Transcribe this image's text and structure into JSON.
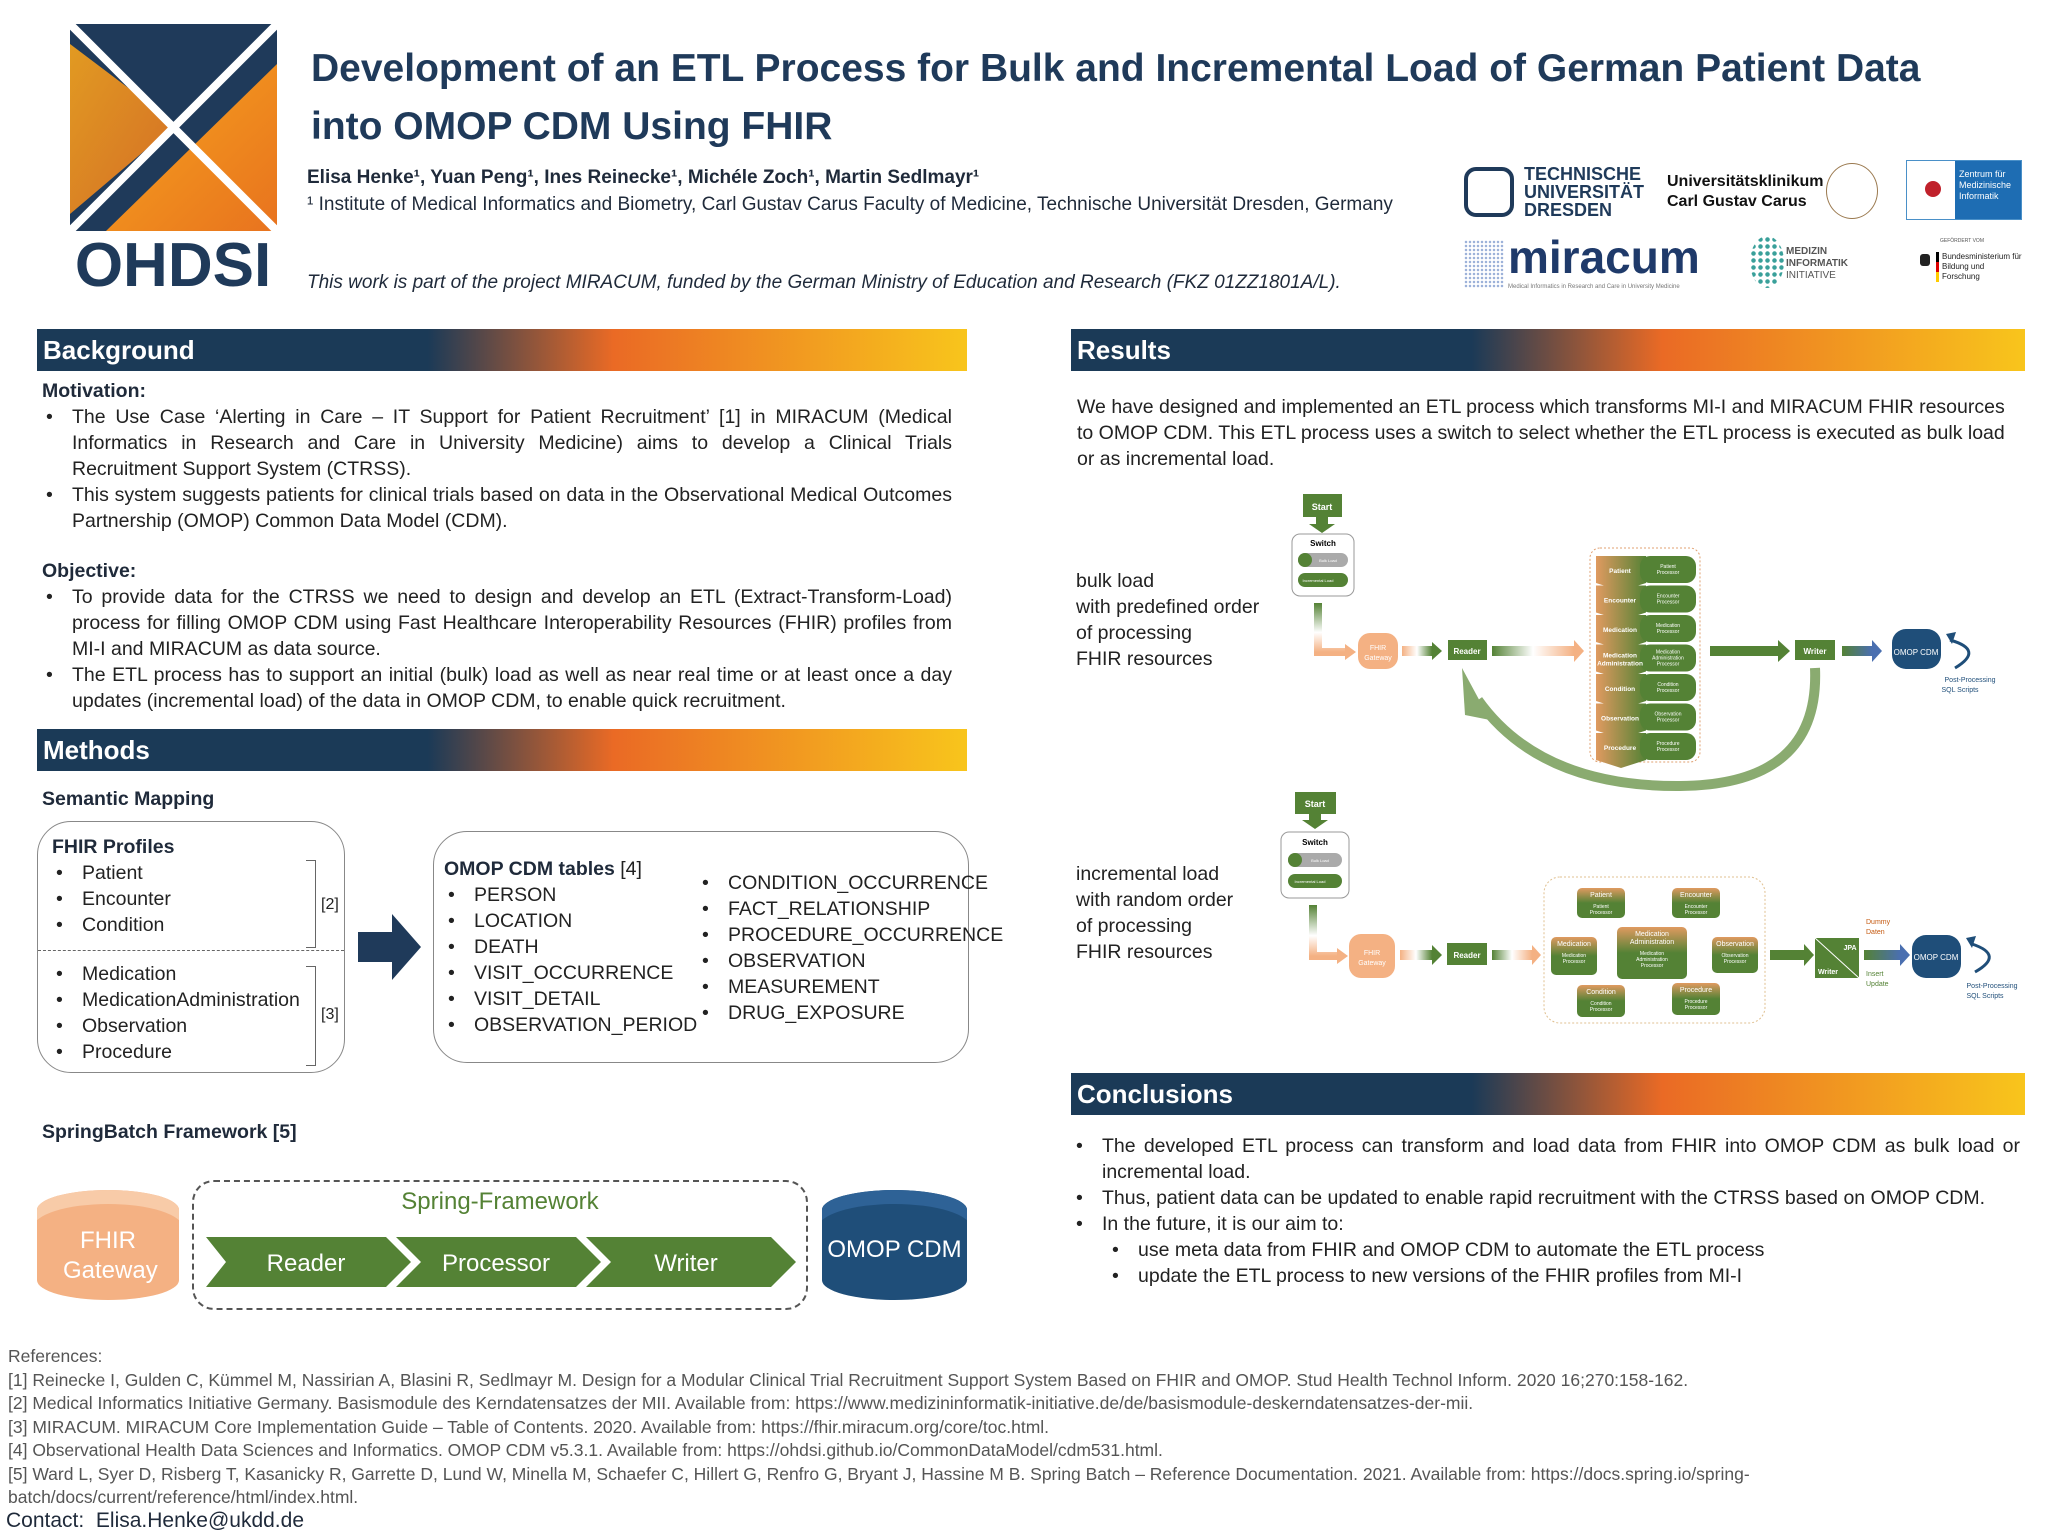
{
  "header": {
    "logo_text": "OHDSI",
    "title_line1": "Development of an ETL Process for Bulk and Incremental Load of German Patient Data",
    "title_line2": "into OMOP CDM Using FHIR",
    "authors": "Elisa Henke¹, Yuan Peng¹, Ines Reinecke¹, Michéle Zoch¹, Martin Sedlmayr¹",
    "affiliation": "¹ Institute of Medical Informatics and Biometry, Carl Gustav Carus Faculty of Medicine, Technische Universität Dresden, Germany",
    "funding": "This work is part of the project MIRACUM, funded by the German Ministry of Education and Research (FKZ 01ZZ1801A/L).",
    "logos": {
      "tud": [
        "TECHNISCHE",
        "UNIVERSITÄT",
        "DRESDEN"
      ],
      "ukd": [
        "Universitätsklinikum",
        "Carl Gustav Carus"
      ],
      "zmi": "Zentrum für Medizinische Informatik",
      "miracum": "miracum",
      "miracum_sub": "Medical Informatics in Research and Care in University Medicine",
      "mii": [
        "MEDIZIN",
        "INFORMATIK",
        "INITIATIVE"
      ],
      "bmbf_pre": "GEFÖRDERT VOM",
      "bmbf": "Bundesministerium für Bildung und Forschung"
    }
  },
  "background": {
    "heading": "Background",
    "motivation_label": "Motivation:",
    "motivation": [
      "The Use Case ‘Alerting in Care – IT Support for Patient Recruitment’ [1] in MIRACUM (Medical Informatics in Research and Care in University Medicine) aims to develop a Clinical Trials Recruitment Support System (CTRSS).",
      "This system suggests patients for clinical trials based on data in the Observational Medical Outcomes Partnership (OMOP) Common Data Model (CDM)."
    ],
    "objective_label": "Objective:",
    "objective": [
      "To provide data for the CTRSS we need to design and develop an ETL (Extract-Transform-Load) process for filling OMOP CDM using Fast Healthcare Interoperability Resources (FHIR) profiles from MI-I and MIRACUM as data source.",
      "The ETL process has to support an initial (bulk) load as well as near real time or at least once a day updates (incremental load) of the data in OMOP CDM, to enable quick recruitment."
    ]
  },
  "methods": {
    "heading": "Methods",
    "semantic_mapping": "Semantic Mapping",
    "fhir_title": "FHIR Profiles",
    "fhir_group1": [
      "Patient",
      "Encounter",
      "Condition"
    ],
    "fhir_ref1": "[2]",
    "fhir_group2": [
      "Medication",
      "MedicationAdministration",
      "Observation",
      "Procedure"
    ],
    "fhir_ref2": "[3]",
    "omop_title": "OMOP CDM tables",
    "omop_ref": "[4]",
    "omop_col1": [
      "PERSON",
      "LOCATION",
      "DEATH",
      "VISIT_OCCURRENCE",
      "VISIT_DETAIL",
      "OBSERVATION_PERIOD"
    ],
    "omop_col2": [
      "CONDITION_OCCURRENCE",
      "FACT_RELATIONSHIP",
      "PROCEDURE_OCCURRENCE",
      "OBSERVATION",
      "MEASUREMENT",
      "DRUG_EXPOSURE"
    ],
    "springbatch": "SpringBatch Framework [5]",
    "fhir_gateway": "FHIR Gateway",
    "spring_framework": "Spring-Framework",
    "steps": [
      "Reader",
      "Processor",
      "Writer"
    ],
    "omop_cdm": "OMOP CDM"
  },
  "results": {
    "heading": "Results",
    "text": "We have designed and implemented an ETL process which transforms MI-I and MIRACUM FHIR resources to OMOP CDM. This ETL process uses a switch to select whether the ETL process is executed as bulk load or as incremental load.",
    "bulk_label": [
      "bulk load",
      "with predefined order",
      "of processing",
      "FHIR resources"
    ],
    "incr_label": [
      "incremental load",
      "with random order",
      "of processing",
      "FHIR resources"
    ],
    "diagram": {
      "start": "Start",
      "switch": "Switch",
      "bulk_load": "Bulk Load",
      "incremental_load": "Incremental Load",
      "fhir": "FHIR",
      "gateway": "Gateway",
      "reader": "Reader",
      "writer": "Writer",
      "jpa": "JPA",
      "omop": "OMOP CDM",
      "post1": "Post-Processing",
      "post2": "SQL Scripts",
      "dummy1": "Dummy",
      "dummy2": "Daten",
      "insert": "Insert",
      "update": "Update",
      "resources": [
        "Patient",
        "Encounter",
        "Medication",
        "Medication Administration",
        "Condition",
        "Observation",
        "Procedure"
      ],
      "processors": [
        "Patient Processor",
        "Encounter Processor",
        "Medication Processor",
        "Medication Administration Processor",
        "Condition Processor",
        "Observation Processor",
        "Procedure Processor"
      ]
    },
    "colors": {
      "green": "#548235",
      "orange": "#f4b183",
      "navy": "#1f4e79"
    }
  },
  "conclusions": {
    "heading": "Conclusions",
    "items": [
      "The developed ETL process can transform and load data from FHIR into OMOP CDM as bulk load or incremental load.",
      "Thus, patient data can be updated to enable rapid recruitment with the CTRSS based on OMOP CDM.",
      "In the future, it is our aim to:"
    ],
    "sub_items": [
      "use meta data from FHIR and OMOP CDM to automate the ETL process",
      "update the ETL process to new versions of the FHIR profiles from MI-I"
    ]
  },
  "references": {
    "label": "References:",
    "items": [
      "[1] Reinecke I, Gulden C, Kümmel M, Nassirian A, Blasini R, Sedlmayr M. Design for a Modular Clinical Trial Recruitment Support System Based on FHIR and OMOP. Stud Health Technol Inform. 2020 16;270:158-162.",
      "[2] Medical Informatics Initiative Germany. Basismodule des Kerndatensatzes der MII. Available from: https://www.medizininformatik-initiative.de/de/basismodule-deskerndatensatzes-der-mii.",
      "[3] MIRACUM. MIRACUM Core Implementation Guide – Table of Contents. 2020. Available from: https://fhir.miracum.org/core/toc.html.",
      "[4] Observational Health Data Sciences and Informatics. OMOP CDM v5.3.1. Available from: https://ohdsi.github.io/CommonDataModel/cdm531.html.",
      "[5] Ward L, Syer D, Risberg T, Kasanicky R, Garrette D, Lund W, Minella M, Schaefer C, Hillert G, Renfro G, Bryant J, Hassine M B. Spring Batch – Reference Documentation. 2021. Available from: https://docs.spring.io/spring-batch/docs/current/reference/html/index.html."
    ]
  },
  "contact": {
    "label": "Contact:",
    "email": "Elisa.Henke@ukdd.de"
  }
}
